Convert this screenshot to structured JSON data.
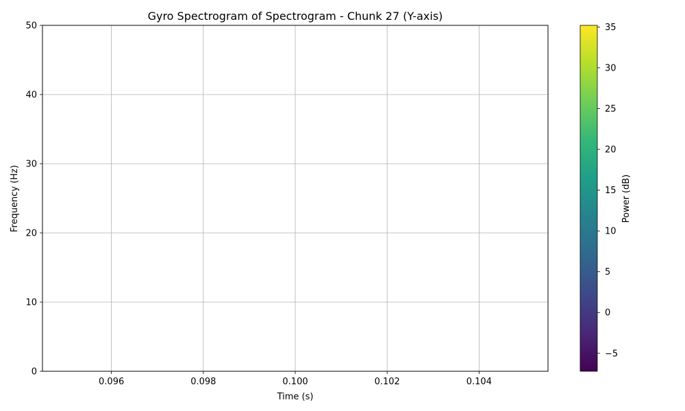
{
  "chart_data": {
    "type": "heatmap",
    "title": "Gyro Spectrogram of Spectrogram - Chunk 27 (Y-axis)",
    "xlabel": "Time (s)",
    "ylabel": "Frequency (Hz)",
    "xlim": [
      0.0945,
      0.1055
    ],
    "ylim": [
      0,
      50
    ],
    "x_ticks": [
      0.096,
      0.098,
      0.1,
      0.102,
      0.104
    ],
    "x_tick_labels": [
      "0.096",
      "0.098",
      "0.100",
      "0.102",
      "0.104"
    ],
    "y_ticks": [
      0,
      10,
      20,
      30,
      40,
      50
    ],
    "y_tick_labels": [
      "0",
      "10",
      "20",
      "30",
      "40",
      "50"
    ],
    "grid": true,
    "values": [],
    "colorbar": {
      "label": "Power (dB)",
      "range": [
        -7.2,
        35.2
      ],
      "ticks": [
        -5,
        0,
        5,
        10,
        15,
        20,
        25,
        30,
        35
      ],
      "tick_labels": [
        "−5",
        "0",
        "5",
        "10",
        "15",
        "20",
        "25",
        "30",
        "35"
      ],
      "colormap": "viridis",
      "colors": [
        "#440154",
        "#482878",
        "#3e4989",
        "#31688e",
        "#26828e",
        "#1f9e89",
        "#35b779",
        "#6ece58",
        "#b5de2b",
        "#fde725"
      ]
    }
  }
}
